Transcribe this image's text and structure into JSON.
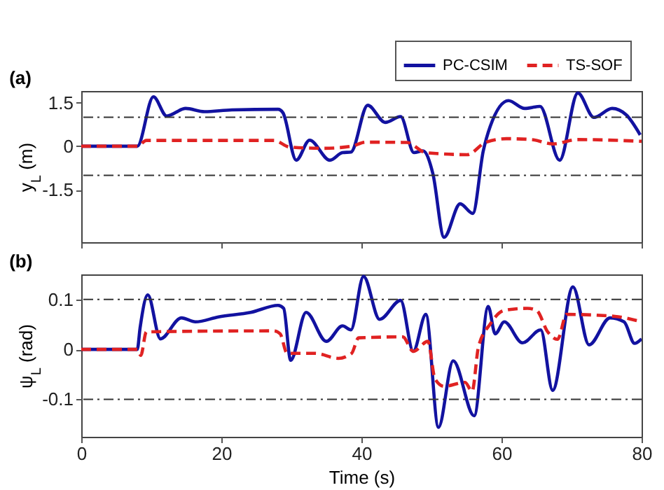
{
  "chart_data": [
    {
      "type": "line",
      "title": "(a)",
      "ylabel": "y$_{L}$ (m)",
      "xlim": [
        0,
        80
      ],
      "xticks": [
        0,
        20,
        40,
        60,
        80
      ],
      "ylim": [
        -3.3,
        1.9
      ],
      "yticks": [
        -1.5,
        0,
        1.5
      ],
      "tick_labels": "y",
      "legend": "top right",
      "ref_lines": [
        {
          "axis": "y",
          "value": 1,
          "color": "#333333",
          "line_style": "dashed"
        },
        {
          "axis": "y",
          "value": -1,
          "color": "#333333",
          "line_style": "dashed"
        }
      ],
      "series": [
        {
          "name": "PC-CSIM",
          "color": "#1212a0",
          "line_style": "solid",
          "x": [
            0,
            8.0,
            10.3,
            12.2,
            14.9,
            17.6,
            21.5,
            28.1,
            28.8,
            30.7,
            32.6,
            35.5,
            37.3,
            38.5,
            40.9,
            43.4,
            45.6,
            47.5,
            48.8,
            50.2,
            51.8,
            54.1,
            55.9,
            57.4,
            58.4,
            61.0,
            63.3,
            65.5,
            68.3,
            70.9,
            73.2,
            75.8,
            77.8,
            79.8
          ],
          "values": [
            0,
            0,
            1.7,
            1.04,
            1.3,
            1.19,
            1.25,
            1.27,
            1.15,
            -0.48,
            0.21,
            -0.48,
            -0.22,
            -0.2,
            1.41,
            0.82,
            1.02,
            -0.22,
            -0.16,
            -0.94,
            -3.13,
            -1.98,
            -2.31,
            -0.16,
            0.69,
            1.57,
            1.3,
            1.37,
            -0.48,
            1.83,
            0.99,
            1.3,
            1.08,
            0.39
          ]
        },
        {
          "name": "TS-SOF",
          "color": "#e02222",
          "line_style": "dashed",
          "x": [
            0,
            8.0,
            9.3,
            27.5,
            29.8,
            34.7,
            38.6,
            40.6,
            46.5,
            49.2,
            55.1,
            57.7,
            60.7,
            64.3,
            67.3,
            70.9,
            80
          ],
          "values": [
            0,
            0,
            0.2,
            0.2,
            -0.03,
            -0.07,
            0,
            0.14,
            0.13,
            -0.22,
            -0.29,
            0.13,
            0.26,
            0.23,
            0.08,
            0.23,
            0.17
          ]
        }
      ]
    },
    {
      "type": "line",
      "title": "(b)",
      "xlabel": "Time (s)",
      "ylabel": "ψ$_{L}$ (rad)",
      "xlim": [
        0,
        80
      ],
      "xticks": [
        0,
        20,
        40,
        60,
        80
      ],
      "ylim": [
        -0.175,
        0.15
      ],
      "yticks": [
        -0.1,
        0,
        0.1
      ],
      "ref_lines": [
        {
          "axis": "y",
          "value": 0.1,
          "color": "#333333",
          "line_style": "dashed"
        },
        {
          "axis": "y",
          "value": -0.1,
          "color": "#333333",
          "line_style": "dashed"
        }
      ],
      "series": [
        {
          "color": "#1212a0",
          "line_style": "solid",
          "x": [
            0,
            8.0,
            8.4,
            9.5,
            11.3,
            14.3,
            16.3,
            19.6,
            24.2,
            28.1,
            28.9,
            29.9,
            32.1,
            35.0,
            37.3,
            38.5,
            40.3,
            42.6,
            45.6,
            47.4,
            49.2,
            51.0,
            53.1,
            56.1,
            58.1,
            59.1,
            60.4,
            63.0,
            65.6,
            67.3,
            70.2,
            72.5,
            75.5,
            77.5,
            79.0,
            80
          ],
          "values": [
            0,
            0,
            0.043,
            0.109,
            0.021,
            0.063,
            0.055,
            0.065,
            0.074,
            0.088,
            0.082,
            -0.022,
            0.074,
            0.016,
            0.047,
            0.039,
            0.146,
            0.06,
            0.098,
            -0.004,
            0.07,
            -0.156,
            -0.023,
            -0.133,
            0.086,
            0.031,
            0.055,
            0.013,
            0.039,
            -0.082,
            0.125,
            0.009,
            0.063,
            0.055,
            0.012,
            0.021
          ]
        },
        {
          "color": "#e02222",
          "line_style": "dashed",
          "x": [
            0,
            8.0,
            8.5,
            9.3,
            27.5,
            28.4,
            29.4,
            33.4,
            36.7,
            38.6,
            39.6,
            45.9,
            47.4,
            49.5,
            50.5,
            51.8,
            54.8,
            55.8,
            56.7,
            58.4,
            60.4,
            63.7,
            65.0,
            66.6,
            68.0,
            69.3,
            76.2,
            80
          ],
          "values": [
            0,
            0,
            -0.012,
            0.035,
            0.037,
            0.031,
            -0.008,
            -0.008,
            -0.018,
            -0.008,
            0.023,
            0.025,
            -0.004,
            0.016,
            -0.059,
            -0.074,
            -0.066,
            -0.084,
            0.004,
            0.051,
            0.078,
            0.082,
            0.078,
            0.035,
            0.02,
            0.07,
            0.066,
            0.055
          ]
        }
      ]
    }
  ]
}
